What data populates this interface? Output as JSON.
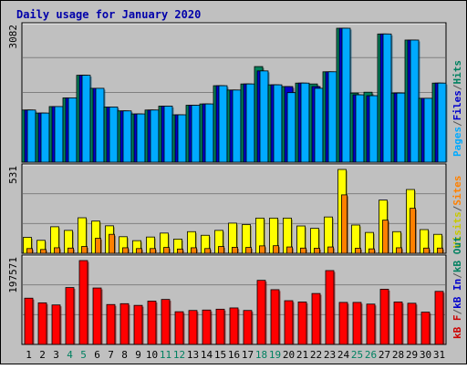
{
  "chart_data": {
    "type": "bar",
    "title": "Daily usage for January 2020",
    "days": [
      "1",
      "2",
      "3",
      "4",
      "5",
      "6",
      "7",
      "8",
      "9",
      "10",
      "11",
      "12",
      "13",
      "14",
      "15",
      "16",
      "17",
      "18",
      "19",
      "20",
      "21",
      "22",
      "23",
      "24",
      "25",
      "26",
      "27",
      "28",
      "29",
      "30",
      "31"
    ],
    "weekend_days": [
      "4",
      "5",
      "11",
      "12",
      "18",
      "19",
      "25",
      "26"
    ],
    "panels": [
      {
        "id": "top",
        "max_label": "3082",
        "ymax": 3082,
        "legend": [
          "Pages",
          "/",
          "Files",
          "/",
          "Hits"
        ],
        "legend_colors": [
          "#00aaff",
          "#555555",
          "#0000cc",
          "#555555",
          "#008060"
        ],
        "series": [
          {
            "name": "Hits",
            "color": "#00805c",
            "values": [
              1200,
              1130,
              1280,
              1480,
              2000,
              1700,
              1270,
              1180,
              1110,
              1200,
              1290,
              1090,
              1310,
              1340,
              1760,
              1660,
              1800,
              2200,
              1780,
              1740,
              1820,
              1800,
              2080,
              3082,
              1590,
              1610,
              2950,
              1590,
              2810,
              1470,
              1820
            ]
          },
          {
            "name": "Files",
            "color": "#0000cc",
            "values": [
              1200,
              1130,
              1280,
              1480,
              2000,
              1700,
              1270,
              1180,
              1110,
              1200,
              1290,
              1090,
              1310,
              1340,
              1760,
              1660,
              1800,
              2100,
              1780,
              1740,
              1820,
              1740,
              2080,
              3082,
              1550,
              1530,
              2950,
              1590,
              2810,
              1470,
              1820
            ]
          },
          {
            "name": "Pages",
            "color": "#00aaff",
            "values": [
              1200,
              1130,
              1280,
              1480,
              2000,
              1700,
              1270,
              1180,
              1110,
              1200,
              1290,
              1090,
              1310,
              1340,
              1760,
              1660,
              1800,
              2100,
              1780,
              1600,
              1820,
              1700,
              2080,
              3082,
              1550,
              1530,
              2950,
              1590,
              2810,
              1470,
              1820
            ]
          }
        ]
      },
      {
        "id": "middle",
        "max_label": "531",
        "ymax": 531,
        "legend": [
          "Visits",
          "/",
          "Sites"
        ],
        "legend_colors": [
          "#c8c800",
          "#555555",
          "#ff8000"
        ],
        "series": [
          {
            "name": "Visits",
            "color": "#ffff00",
            "values": [
              101,
              82,
              168,
              145,
              225,
              204,
              174,
              105,
              80,
              103,
              128,
              90,
              137,
              114,
              145,
              191,
              182,
              223,
              223,
              223,
              173,
              158,
              230,
              531,
              179,
              132,
              337,
              137,
              404,
              150,
              120
            ]
          },
          {
            "name": "Sites",
            "color": "#ff8000",
            "values": [
              30,
              24,
              35,
              33,
              43,
              95,
              120,
              35,
              30,
              30,
              37,
              27,
              35,
              30,
              43,
              38,
              37,
              47,
              48,
              40,
              33,
              32,
              40,
              370,
              32,
              28,
              210,
              35,
              285,
              33,
              33
            ]
          }
        ]
      },
      {
        "id": "bottom",
        "max_label": "197571",
        "ymax": 197571,
        "legend": [
          "kB F",
          "/",
          "kB In",
          "/",
          "kB Out"
        ],
        "legend_colors": [
          "#cc0000",
          "#555555",
          "#0000cc",
          "#555555",
          "#008060"
        ],
        "series": [
          {
            "name": "kB F",
            "color": "#ff0000",
            "values": [
              109000,
              98000,
              93000,
              134000,
              197571,
              133000,
              94000,
              96000,
              92000,
              102000,
              106000,
              77000,
              80000,
              81000,
              83000,
              86000,
              80000,
              151000,
              129000,
              103000,
              100000,
              120000,
              174000,
              99000,
              99000,
              95000,
              130000,
              100000,
              97000,
              76000,
              125000
            ]
          }
        ]
      }
    ]
  }
}
